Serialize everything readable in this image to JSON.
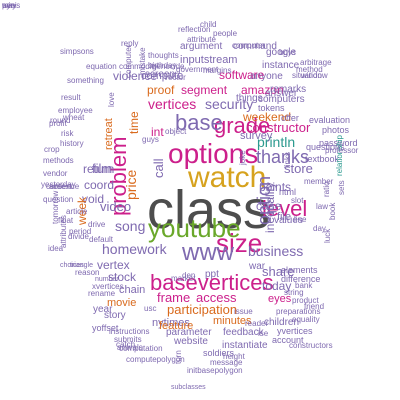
{
  "colors": {
    "teal": "#2c9a8f",
    "magenta": "#cc1f8b",
    "gray": "#4d4d4d",
    "orange": "#d96a1d",
    "green": "#6aa82a",
    "purple": "#7f6ab0",
    "gold": "#d6a21e",
    "brown": "#a87a3c"
  },
  "words": [
    {
      "text": "class",
      "color": "gray"
    },
    {
      "text": "watch",
      "color": "gold"
    },
    {
      "text": "options",
      "color": "magenta"
    },
    {
      "text": "youtube",
      "color": "green"
    },
    {
      "text": "size",
      "color": "magenta"
    },
    {
      "text": "www",
      "color": "purple"
    },
    {
      "text": "level",
      "color": "magenta"
    },
    {
      "text": "basevertices",
      "color": "magenta"
    },
    {
      "text": "grade",
      "color": "magenta"
    },
    {
      "text": "problem",
      "color": "magenta"
    },
    {
      "text": "base",
      "color": "purple"
    },
    {
      "text": "option",
      "color": "purple"
    },
    {
      "text": "thanks",
      "color": "purple"
    },
    {
      "text": "security",
      "color": "purple"
    },
    {
      "text": "frame",
      "color": "magenta"
    },
    {
      "text": "access",
      "color": "magenta"
    },
    {
      "text": "participation",
      "color": "orange"
    },
    {
      "text": "homework",
      "color": "purple"
    },
    {
      "text": "song",
      "color": "purple"
    },
    {
      "text": "business",
      "color": "purple"
    },
    {
      "text": "share",
      "color": "purple"
    },
    {
      "text": "price",
      "color": "orange"
    },
    {
      "text": "vertices",
      "color": "magenta"
    },
    {
      "text": "video",
      "color": "purple"
    },
    {
      "text": "film",
      "color": "purple"
    },
    {
      "text": "println",
      "color": "teal"
    },
    {
      "text": "constructor",
      "color": "magenta"
    },
    {
      "text": "case",
      "color": "purple"
    },
    {
      "text": "store",
      "color": "purple"
    },
    {
      "text": "points",
      "color": "purple"
    },
    {
      "text": "stock",
      "color": "purple"
    },
    {
      "text": "return",
      "color": "purple"
    },
    {
      "text": "coord",
      "color": "purple"
    },
    {
      "text": "vertex",
      "color": "purple"
    },
    {
      "text": "proof",
      "color": "orange"
    },
    {
      "text": "segment",
      "color": "magenta"
    },
    {
      "text": "compute",
      "color": "purple"
    },
    {
      "text": "screen",
      "color": "purple"
    },
    {
      "text": "software",
      "color": "magenta"
    },
    {
      "text": "amazon",
      "color": "magenta"
    },
    {
      "text": "weekend",
      "color": "orange"
    },
    {
      "text": "file",
      "color": "purple"
    },
    {
      "text": "today",
      "color": "purple"
    },
    {
      "text": "eyes",
      "color": "magenta"
    },
    {
      "text": "minutes",
      "color": "orange"
    },
    {
      "text": "nytimes",
      "color": "purple"
    },
    {
      "text": "chain",
      "color": "purple"
    },
    {
      "text": "movie",
      "color": "orange"
    },
    {
      "text": "year",
      "color": "purple"
    },
    {
      "text": "story",
      "color": "purple"
    },
    {
      "text": "feature",
      "color": "orange"
    },
    {
      "text": "parameter",
      "color": "purple"
    },
    {
      "text": "feedback",
      "color": "purple"
    },
    {
      "text": "website",
      "color": "purple"
    },
    {
      "text": "instantiate",
      "color": "purple"
    },
    {
      "text": "children",
      "color": "purple"
    },
    {
      "text": "time",
      "color": "orange"
    },
    {
      "text": "call",
      "color": "purple"
    },
    {
      "text": "int",
      "color": "magenta"
    },
    {
      "text": "retreat",
      "color": "orange"
    },
    {
      "text": "inequality",
      "color": "purple"
    },
    {
      "text": "war",
      "color": "purple"
    },
    {
      "text": "ppt",
      "color": "purple"
    },
    {
      "text": "void",
      "color": "purple"
    },
    {
      "text": "week",
      "color": "orange"
    },
    {
      "text": "survey",
      "color": "purple"
    },
    {
      "text": "things",
      "color": "purple"
    },
    {
      "text": "violence",
      "color": "purple"
    },
    {
      "text": "inputstream",
      "color": "purple"
    },
    {
      "text": "argument",
      "color": "purple"
    },
    {
      "text": "command",
      "color": "purple"
    },
    {
      "text": "google",
      "color": "purple"
    },
    {
      "text": "instance",
      "color": "purple"
    },
    {
      "text": "answer",
      "color": "purple"
    },
    {
      "text": "anyone",
      "color": "purple"
    },
    {
      "text": "remarks",
      "color": "purple"
    },
    {
      "text": "computers",
      "color": "purple"
    },
    {
      "text": "tokens",
      "color": "purple"
    },
    {
      "text": "offer",
      "color": "purple"
    },
    {
      "text": "evaluation",
      "color": "purple"
    },
    {
      "text": "photos",
      "color": "purple"
    },
    {
      "text": "password",
      "color": "purple"
    },
    {
      "text": "questions",
      "color": "purple"
    },
    {
      "text": "textbook",
      "color": "purple"
    },
    {
      "text": "html",
      "color": "purple"
    },
    {
      "text": "member",
      "color": "purple"
    },
    {
      "text": "relationship",
      "color": "teal"
    },
    {
      "text": "values",
      "color": "purple"
    },
    {
      "text": "elements",
      "color": "purple"
    },
    {
      "text": "difference",
      "color": "purple"
    },
    {
      "text": "bank",
      "color": "purple"
    },
    {
      "text": "string",
      "color": "purple"
    },
    {
      "text": "product",
      "color": "purple"
    },
    {
      "text": "friend",
      "color": "purple"
    },
    {
      "text": "yvertices",
      "color": "purple"
    },
    {
      "text": "account",
      "color": "purple"
    },
    {
      "text": "constructors",
      "color": "purple"
    },
    {
      "text": "soldiers",
      "color": "purple"
    },
    {
      "text": "height",
      "color": "purple"
    },
    {
      "text": "message",
      "color": "purple"
    },
    {
      "text": "initbasepolygon",
      "color": "purple"
    },
    {
      "text": "subclasses",
      "color": "purple"
    },
    {
      "text": "computation",
      "color": "purple"
    },
    {
      "text": "computepolygon",
      "color": "purple"
    },
    {
      "text": "submits",
      "color": "purple"
    },
    {
      "text": "arrivals",
      "color": "purple"
    },
    {
      "text": "catch",
      "color": "purple"
    },
    {
      "text": "yoffset",
      "color": "purple"
    },
    {
      "text": "instructions",
      "color": "purple"
    },
    {
      "text": "rename",
      "color": "purple"
    },
    {
      "text": "xvertices",
      "color": "purple"
    },
    {
      "text": "number",
      "color": "purple"
    },
    {
      "text": "reason",
      "color": "purple"
    },
    {
      "text": "choices",
      "color": "purple"
    },
    {
      "text": "triangle",
      "color": "purple"
    },
    {
      "text": "divide",
      "color": "purple"
    },
    {
      "text": "idea",
      "color": "purple"
    },
    {
      "text": "question",
      "color": "purple"
    },
    {
      "text": "yesterday",
      "color": "purple"
    },
    {
      "text": "methods",
      "color": "purple"
    },
    {
      "text": "vendor",
      "color": "purple"
    },
    {
      "text": "context",
      "color": "purple"
    },
    {
      "text": "absence",
      "color": "purple"
    },
    {
      "text": "crop",
      "color": "purple"
    },
    {
      "text": "history",
      "color": "purple"
    },
    {
      "text": "risk",
      "color": "purple"
    },
    {
      "text": "profit",
      "color": "purple"
    },
    {
      "text": "round",
      "color": "purple"
    },
    {
      "text": "employee",
      "color": "purple"
    },
    {
      "text": "wheat",
      "color": "purple"
    },
    {
      "text": "result",
      "color": "purple"
    },
    {
      "text": "something",
      "color": "purple"
    },
    {
      "text": "equation",
      "color": "purple"
    },
    {
      "text": "reply",
      "color": "purple"
    },
    {
      "text": "simpsons",
      "color": "purple"
    },
    {
      "text": "commodity",
      "color": "purple"
    },
    {
      "text": "thoughts",
      "color": "purple"
    },
    {
      "text": "genocide",
      "color": "purple"
    },
    {
      "text": "government",
      "color": "purple"
    },
    {
      "text": "attribute",
      "color": "purple"
    },
    {
      "text": "reflection",
      "color": "purple"
    },
    {
      "text": "child",
      "color": "purple"
    },
    {
      "text": "people",
      "color": "purple"
    },
    {
      "text": "computer",
      "color": "purple"
    },
    {
      "text": "boys",
      "color": "purple"
    },
    {
      "text": "situation",
      "color": "purple"
    },
    {
      "text": "window",
      "color": "purple"
    },
    {
      "text": "method",
      "color": "purple"
    },
    {
      "text": "arbitrage",
      "color": "purple"
    },
    {
      "text": "vector",
      "color": "purple"
    },
    {
      "text": "margins",
      "color": "purple"
    },
    {
      "text": "birthday",
      "color": "purple"
    },
    {
      "text": "computer",
      "color": "purple"
    },
    {
      "text": "mistake",
      "color": "purple"
    },
    {
      "text": "love",
      "color": "purple"
    },
    {
      "text": "object",
      "color": "purple"
    },
    {
      "text": "article",
      "color": "purple"
    },
    {
      "text": "float",
      "color": "purple"
    },
    {
      "text": "period",
      "color": "purple"
    },
    {
      "text": "drive",
      "color": "purple"
    },
    {
      "text": "default",
      "color": "purple"
    },
    {
      "text": "tomorrow",
      "color": "purple"
    },
    {
      "text": "market",
      "color": "purple"
    },
    {
      "text": "usc",
      "color": "purple"
    },
    {
      "text": "den",
      "color": "purple"
    },
    {
      "text": "turn",
      "color": "purple"
    },
    {
      "text": "issue",
      "color": "purple"
    },
    {
      "text": "reader",
      "color": "purple"
    },
    {
      "text": "ise",
      "color": "purple"
    },
    {
      "text": "joke",
      "color": "purple"
    },
    {
      "text": "guys",
      "color": "purple"
    },
    {
      "text": "slot",
      "color": "purple"
    },
    {
      "text": "links",
      "color": "purple"
    },
    {
      "text": "line",
      "color": "purple"
    },
    {
      "text": "law",
      "color": "purple"
    },
    {
      "text": "day",
      "color": "purple"
    },
    {
      "text": "ratio",
      "color": "purple"
    },
    {
      "text": "book",
      "color": "purple"
    },
    {
      "text": "sets",
      "color": "purple"
    },
    {
      "text": "luck",
      "color": "purple"
    },
    {
      "text": "professor",
      "color": "purple"
    },
    {
      "text": "equality",
      "color": "purple"
    },
    {
      "text": "preparations",
      "color": "purple"
    },
    {
      "text": "attributes",
      "color": "purple"
    },
    {
      "text": "mini",
      "color": "purple"
    },
    {
      "text": "eye",
      "color": "purple"
    },
    {
      "text": "pen",
      "color": "purple"
    },
    {
      "text": "ways",
      "color": "purple"
    }
  ]
}
